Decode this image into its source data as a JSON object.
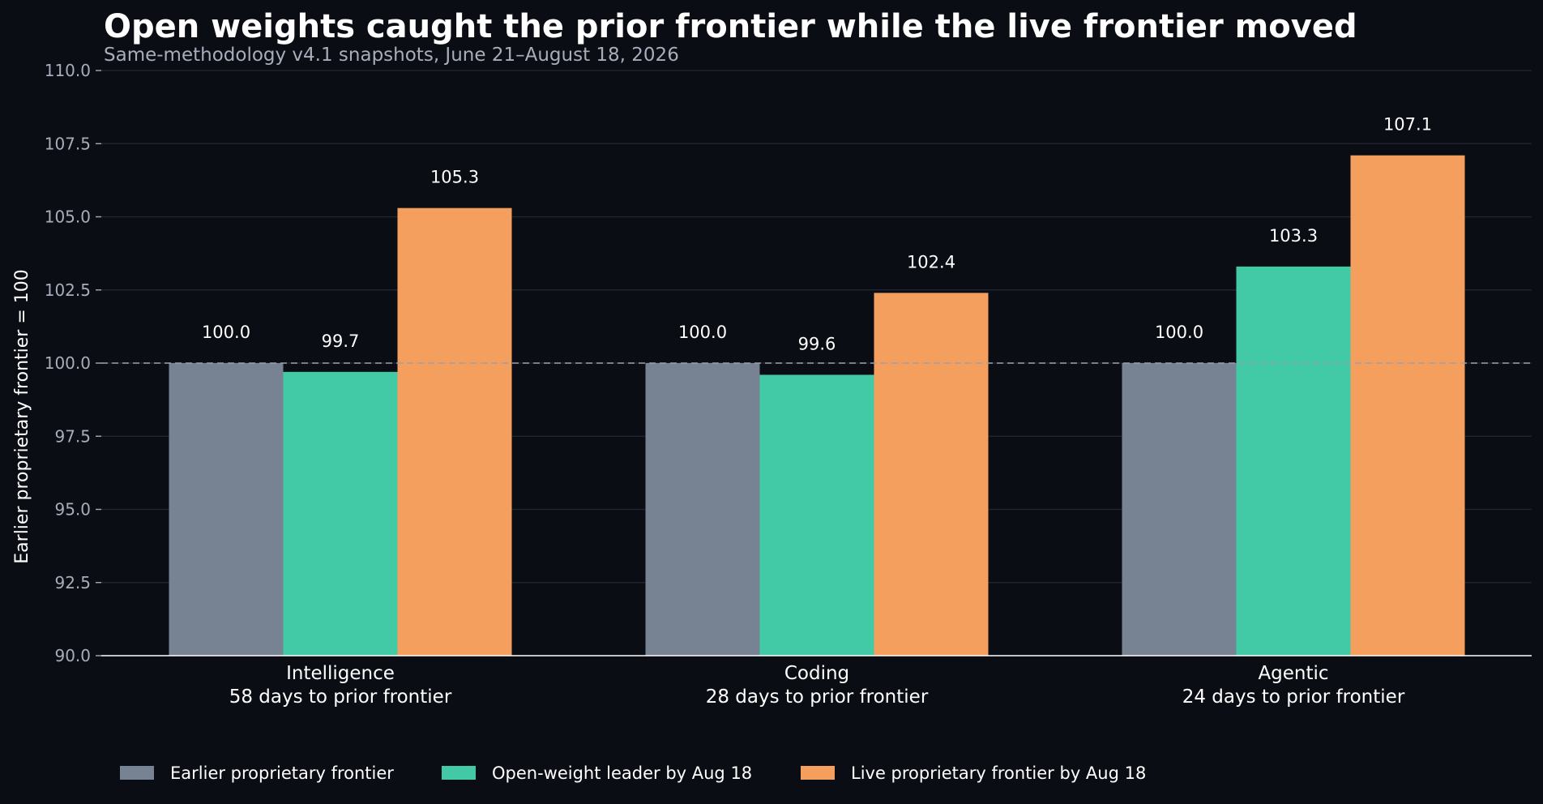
{
  "chart_data": {
    "type": "bar",
    "title": "Open weights caught the prior frontier while the live frontier moved",
    "subtitle": "Same-methodology v4.1 snapshots, June 21–August 18, 2026",
    "ylabel": "Earlier proprietary frontier = 100",
    "xlabel": "",
    "ylim": [
      90.0,
      110.0
    ],
    "yticks": [
      "90.0",
      "92.5",
      "95.0",
      "97.5",
      "100.0",
      "102.5",
      "105.0",
      "107.5",
      "110.0"
    ],
    "reference_line": 100.0,
    "grid": "horizontal",
    "legend_position": "bottom-left",
    "categories": [
      "Intelligence",
      "Coding",
      "Agentic"
    ],
    "category_sublabels": [
      "58 days to prior frontier",
      "28 days to prior frontier",
      "24 days to prior frontier"
    ],
    "series": [
      {
        "name": "Earlier proprietary frontier",
        "color": "#778293",
        "values": [
          100.0,
          100.0,
          100.0
        ],
        "labels": [
          "100.0",
          "100.0",
          "100.0"
        ]
      },
      {
        "name": "Open-weight leader by Aug 18",
        "color": "#42c9a5",
        "values": [
          99.7,
          99.6,
          103.3
        ],
        "labels": [
          "99.7",
          "99.6",
          "103.3"
        ]
      },
      {
        "name": "Live proprietary frontier by Aug 18",
        "color": "#f59f5f",
        "values": [
          105.3,
          102.4,
          107.1
        ],
        "labels": [
          "105.3",
          "102.4",
          "107.1"
        ]
      }
    ]
  }
}
